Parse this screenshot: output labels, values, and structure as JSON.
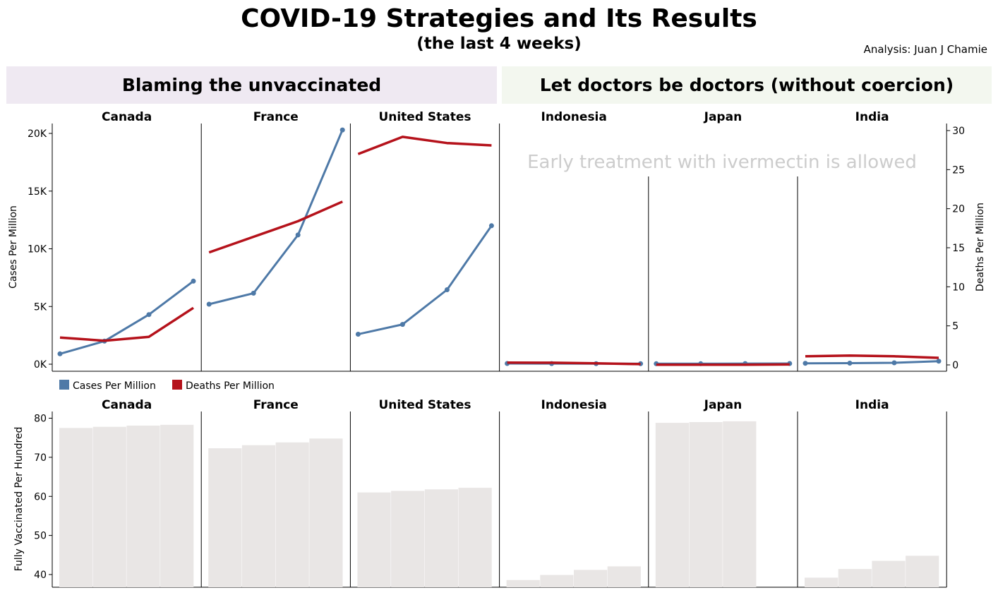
{
  "title": "COVID-19 Strategies and Its Results",
  "subtitle": "(the last 4 weeks)",
  "credit": "Analysis: Juan J Chamie",
  "groups": [
    {
      "label": "Blaming the unvaccinated",
      "color": "#efe9f2"
    },
    {
      "label": "Let doctors be doctors (without coercion)",
      "color": "#f3f7ef"
    }
  ],
  "annotation": "Early treatment with ivermectin is allowed",
  "colors": {
    "cases": "#4e79a7",
    "deaths": "#b5121b",
    "vaccinated": "#e9e6e5"
  },
  "legend": [
    {
      "label": "Cases Per Million",
      "color": "#4e79a7"
    },
    {
      "label": "Deaths Per Million",
      "color": "#b5121b"
    }
  ],
  "chart_data": [
    {
      "type": "line",
      "ylabel": "Cases Per Million",
      "y2label": "Deaths Per Million",
      "ylim": [
        0,
        21000
      ],
      "y2lim": [
        0,
        30
      ],
      "yticks": [
        "0K",
        "5K",
        "10K",
        "15K",
        "20K"
      ],
      "y2ticks": [
        "0",
        "5",
        "10",
        "15",
        "20",
        "25",
        "30"
      ],
      "grid": false,
      "legend_position": "bottom-left",
      "facets": [
        "Canada",
        "France",
        "United States",
        "Indonesia",
        "Japan",
        "India"
      ],
      "series": [
        {
          "name": "Cases Per Million",
          "axis": "left",
          "markers": true,
          "values": [
            [
              900,
              2000,
              4300,
              7200
            ],
            [
              5200,
              6150,
              11200,
              20300
            ],
            [
              2600,
              3450,
              6450,
              12000
            ],
            [
              60,
              55,
              50,
              40
            ],
            [
              40,
              45,
              55,
              60
            ],
            [
              80,
              90,
              120,
              260
            ]
          ]
        },
        {
          "name": "Deaths Per Million",
          "axis": "right",
          "markers": false,
          "values": [
            [
              3.5,
              3.1,
              3.6,
              7.3
            ],
            [
              14.4,
              16.4,
              18.4,
              20.9
            ],
            [
              27,
              29.2,
              28.4,
              28.1
            ],
            [
              0.3,
              0.28,
              0.2,
              0.1
            ],
            [
              0.02,
              0.02,
              0.03,
              0.05
            ],
            [
              1.1,
              1.2,
              1.1,
              0.9
            ]
          ]
        }
      ]
    },
    {
      "type": "bar",
      "ylabel": "Fully Vaccinated Per Hundred",
      "ylim": [
        38,
        81
      ],
      "yticks": [
        "40",
        "50",
        "60",
        "70",
        "80"
      ],
      "grid": false,
      "facets": [
        "Canada",
        "France",
        "United States",
        "Indonesia",
        "Japan",
        "India"
      ],
      "values": [
        [
          77.5,
          77.8,
          78.1,
          78.3
        ],
        [
          72.3,
          73.1,
          73.8,
          74.8
        ],
        [
          61.0,
          61.4,
          61.8,
          62.2
        ],
        [
          38.6,
          39.9,
          41.2,
          42.1
        ],
        [
          78.8,
          79.0,
          79.2,
          null
        ],
        [
          39.2,
          41.4,
          43.5,
          44.8
        ]
      ]
    }
  ]
}
